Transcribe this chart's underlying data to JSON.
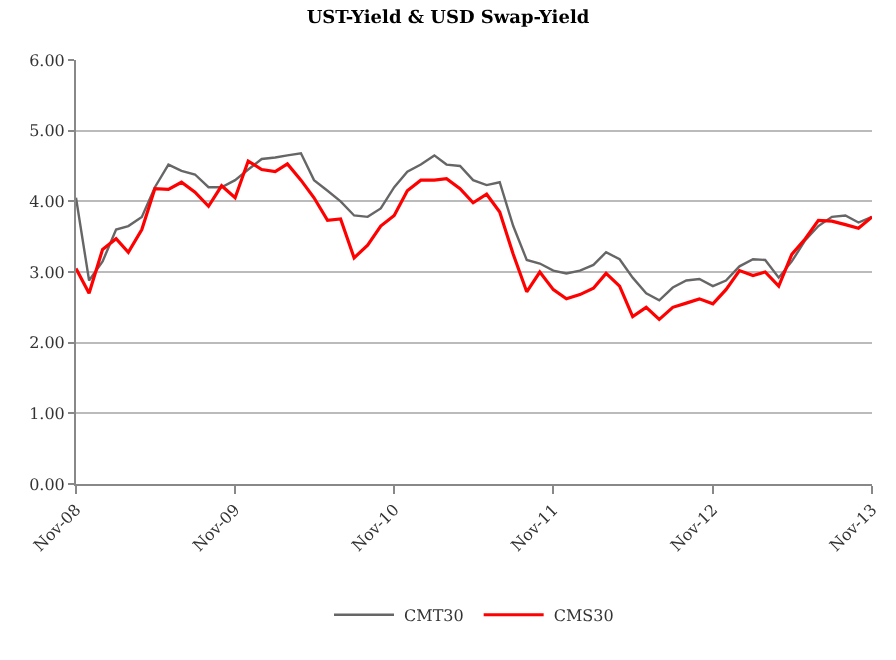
{
  "chart_data": {
    "type": "line",
    "title": "UST-Yield & USD Swap-Yield",
    "x": [
      "2008-11",
      "2008-12",
      "2009-01",
      "2009-02",
      "2009-03",
      "2009-04",
      "2009-05",
      "2009-06",
      "2009-07",
      "2009-08",
      "2009-09",
      "2009-10",
      "2009-11",
      "2009-12",
      "2010-01",
      "2010-02",
      "2010-03",
      "2010-04",
      "2010-05",
      "2010-06",
      "2010-07",
      "2010-08",
      "2010-09",
      "2010-10",
      "2010-11",
      "2010-12",
      "2011-01",
      "2011-02",
      "2011-03",
      "2011-04",
      "2011-05",
      "2011-06",
      "2011-07",
      "2011-08",
      "2011-09",
      "2011-10",
      "2011-11",
      "2011-12",
      "2012-01",
      "2012-02",
      "2012-03",
      "2012-04",
      "2012-05",
      "2012-06",
      "2012-07",
      "2012-08",
      "2012-09",
      "2012-10",
      "2012-11",
      "2012-12",
      "2013-01",
      "2013-02",
      "2013-03",
      "2013-04",
      "2013-05",
      "2013-06",
      "2013-07",
      "2013-08",
      "2013-09",
      "2013-10",
      "2013-11"
    ],
    "series": [
      {
        "name": "CMT30",
        "color": "#666666",
        "values": [
          4.05,
          2.88,
          3.15,
          3.6,
          3.65,
          3.78,
          4.2,
          4.52,
          4.43,
          4.38,
          4.2,
          4.2,
          4.3,
          4.45,
          4.6,
          4.62,
          4.65,
          4.68,
          4.3,
          4.15,
          4.0,
          3.8,
          3.78,
          3.9,
          4.2,
          4.42,
          4.52,
          4.65,
          4.52,
          4.5,
          4.3,
          4.23,
          4.27,
          3.65,
          3.17,
          3.12,
          3.02,
          2.98,
          3.02,
          3.1,
          3.28,
          3.18,
          2.92,
          2.7,
          2.6,
          2.78,
          2.88,
          2.9,
          2.8,
          2.88,
          3.08,
          3.18,
          3.17,
          2.92,
          3.15,
          3.45,
          3.65,
          3.78,
          3.8,
          3.7,
          3.78
        ]
      },
      {
        "name": "CMS30",
        "color": "#ff0000",
        "values": [
          3.05,
          2.7,
          3.32,
          3.47,
          3.28,
          3.6,
          4.18,
          4.17,
          4.27,
          4.13,
          3.93,
          4.22,
          4.05,
          4.57,
          4.45,
          4.42,
          4.53,
          4.3,
          4.05,
          3.73,
          3.75,
          3.2,
          3.38,
          3.65,
          3.8,
          4.15,
          4.3,
          4.3,
          4.32,
          4.18,
          3.98,
          4.1,
          3.85,
          3.25,
          2.72,
          3.0,
          2.75,
          2.62,
          2.68,
          2.77,
          2.98,
          2.8,
          2.37,
          2.5,
          2.33,
          2.5,
          2.56,
          2.62,
          2.55,
          2.75,
          3.02,
          2.95,
          3.0,
          2.8,
          3.25,
          3.47,
          3.73,
          3.72,
          3.67,
          3.62,
          3.78
        ]
      }
    ],
    "xlim": [
      "2008-11",
      "2013-11"
    ],
    "xticks": [
      {
        "value": "2008-11",
        "label": "Nov-08"
      },
      {
        "value": "2009-11",
        "label": "Nov-09"
      },
      {
        "value": "2010-11",
        "label": "Nov-10"
      },
      {
        "value": "2011-11",
        "label": "Nov-11"
      },
      {
        "value": "2012-11",
        "label": "Nov-12"
      },
      {
        "value": "2013-11",
        "label": "Nov-13"
      }
    ],
    "ylim": [
      0,
      6
    ],
    "yticks": [
      {
        "value": 0,
        "label": "0.00"
      },
      {
        "value": 1,
        "label": "1.00"
      },
      {
        "value": 2,
        "label": "2.00"
      },
      {
        "value": 3,
        "label": "3.00"
      },
      {
        "value": 4,
        "label": "4.00"
      },
      {
        "value": 5,
        "label": "5.00"
      },
      {
        "value": 6,
        "label": "6.00"
      }
    ],
    "grid": "y",
    "legend": "bottom",
    "marker": "none",
    "line_style": "solid"
  }
}
